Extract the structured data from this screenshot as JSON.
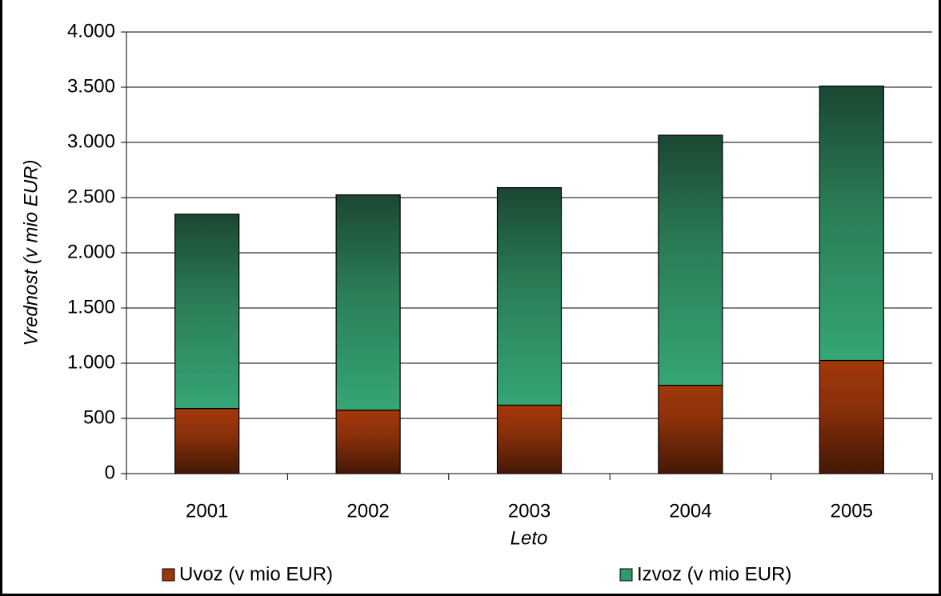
{
  "chart_data": {
    "type": "stacked_bar",
    "x_label": "Leto",
    "y_label": "Vrednost (v mio EUR)",
    "categories": [
      "2001",
      "2002",
      "2003",
      "2004",
      "2005"
    ],
    "series": [
      {
        "name": "Uvoz (v mio EUR)",
        "color": "#9c360b",
        "values": [
          590,
          575,
          620,
          800,
          1025
        ]
      },
      {
        "name": "Izvoz (v mio EUR)",
        "color": "#2f9a6a",
        "values": [
          1760,
          1950,
          1970,
          2265,
          2485
        ]
      }
    ],
    "ylim": [
      0,
      4000
    ],
    "yticks": [
      0,
      500,
      {
        "value": 1000,
        "label": "1.000"
      },
      {
        "value": 1500,
        "label": "1.500"
      },
      {
        "value": 2000,
        "label": "2.000"
      },
      {
        "value": 2500,
        "label": "2.500"
      },
      {
        "value": 3000,
        "label": "3.000"
      },
      {
        "value": 3500,
        "label": "3.500"
      },
      {
        "value": 4000,
        "label": "4.000"
      }
    ],
    "grid": true,
    "legend": "bottom"
  }
}
